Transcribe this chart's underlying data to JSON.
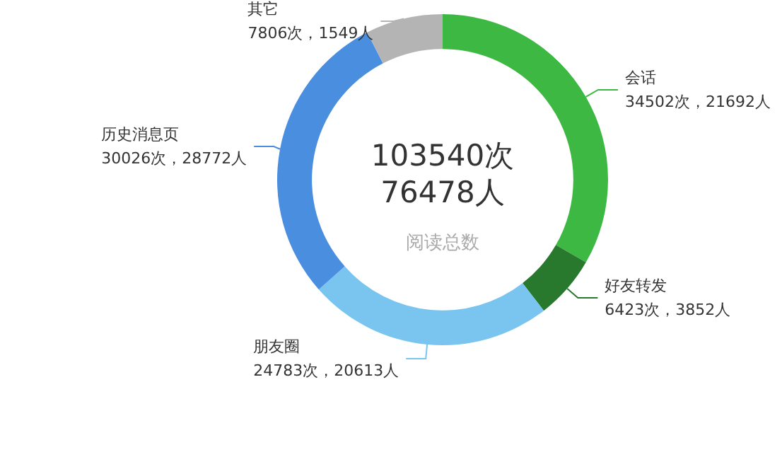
{
  "chart_data": {
    "type": "donut",
    "categories": [
      "会话",
      "好友转发",
      "朋友圈",
      "历史消息页",
      "其它"
    ],
    "values": [
      34502,
      6423,
      24783,
      30026,
      7806
    ],
    "colors": [
      "#3db843",
      "#28792e",
      "#79c5f0",
      "#4a8ee0",
      "#b4b4b4"
    ],
    "value_labels": [
      "34502次，21692人",
      "6423次，3852人",
      "24783次，20613人",
      "30026次，28772人",
      "7806次，1549人"
    ],
    "annotations": [
      "103540次",
      "76478人",
      "阅读总数"
    ],
    "legend": false
  }
}
